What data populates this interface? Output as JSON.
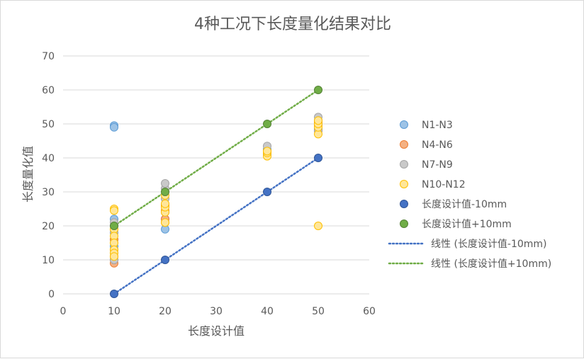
{
  "chart_data": {
    "type": "scatter",
    "title": "4种工况下长度量化结果对比",
    "xlabel": "长度设计值",
    "ylabel": "长度量化值",
    "xlim": [
      0,
      60
    ],
    "ylim": [
      0,
      70
    ],
    "xticks": [
      0,
      10,
      20,
      30,
      40,
      50,
      60
    ],
    "yticks": [
      0,
      10,
      20,
      30,
      40,
      50,
      60,
      70
    ],
    "grid": "horizontal",
    "legend_position": "right",
    "series": [
      {
        "name": "N1-N3",
        "fill": "#9dc3e6",
        "stroke": "#5b9bd5",
        "points": [
          [
            10,
            49.5
          ],
          [
            10,
            49
          ],
          [
            10,
            22
          ],
          [
            10,
            20
          ],
          [
            10,
            18
          ],
          [
            10,
            16
          ],
          [
            10,
            14
          ],
          [
            20,
            19
          ],
          [
            20,
            22
          ],
          [
            20,
            26
          ],
          [
            40,
            41
          ],
          [
            40,
            42.5
          ],
          [
            50,
            48.5
          ],
          [
            50,
            50
          ],
          [
            50,
            51
          ]
        ]
      },
      {
        "name": "N4-N6",
        "fill": "#f4b183",
        "stroke": "#ed7d31",
        "points": [
          [
            10,
            9
          ],
          [
            10,
            10
          ],
          [
            10,
            11
          ],
          [
            10,
            13
          ],
          [
            10,
            16
          ],
          [
            10,
            19
          ],
          [
            20,
            21
          ],
          [
            20,
            22
          ],
          [
            20,
            24.5
          ],
          [
            20,
            26
          ],
          [
            40,
            41.5
          ],
          [
            40,
            42
          ],
          [
            50,
            48
          ],
          [
            50,
            49.5
          ],
          [
            50,
            50.5
          ]
        ]
      },
      {
        "name": "N7-N9",
        "fill": "#c9c9c9",
        "stroke": "#a5a5a5",
        "points": [
          [
            10,
            10
          ],
          [
            10,
            12
          ],
          [
            10,
            15
          ],
          [
            10,
            18
          ],
          [
            10,
            21
          ],
          [
            20,
            24
          ],
          [
            20,
            28
          ],
          [
            20,
            31
          ],
          [
            20,
            32.5
          ],
          [
            40,
            41
          ],
          [
            40,
            43.5
          ],
          [
            50,
            48
          ],
          [
            50,
            50
          ],
          [
            50,
            52
          ]
        ]
      },
      {
        "name": "N10-N12",
        "fill": "#ffe699",
        "stroke": "#ffc000",
        "points": [
          [
            10,
            25
          ],
          [
            10,
            24.5
          ],
          [
            10,
            19
          ],
          [
            10,
            17
          ],
          [
            10,
            15
          ],
          [
            10,
            13
          ],
          [
            10,
            12
          ],
          [
            10,
            11
          ],
          [
            20,
            21
          ],
          [
            20,
            24
          ],
          [
            20,
            25.5
          ],
          [
            20,
            26.5
          ],
          [
            20,
            29
          ],
          [
            40,
            40.5
          ],
          [
            40,
            41.5
          ],
          [
            40,
            42
          ],
          [
            50,
            47
          ],
          [
            50,
            49
          ],
          [
            50,
            50
          ],
          [
            50,
            51
          ],
          [
            50,
            20
          ]
        ]
      },
      {
        "name": "长度设计值-10mm",
        "fill": "#4472c4",
        "stroke": "#2f5597",
        "points": [
          [
            10,
            0
          ],
          [
            20,
            10
          ],
          [
            40,
            30
          ],
          [
            50,
            40
          ]
        ]
      },
      {
        "name": "长度设计值+10mm",
        "fill": "#70ad47",
        "stroke": "#548235",
        "points": [
          [
            10,
            20
          ],
          [
            20,
            30
          ],
          [
            40,
            50
          ],
          [
            50,
            60
          ]
        ]
      }
    ],
    "trendlines": [
      {
        "name": "线性 (长度设计值-10mm)",
        "color": "#4472c4",
        "from": [
          10,
          0
        ],
        "to": [
          50,
          40
        ]
      },
      {
        "name": "线性 (长度设计值+10mm)",
        "color": "#70ad47",
        "from": [
          10,
          20
        ],
        "to": [
          50,
          60
        ]
      }
    ]
  }
}
